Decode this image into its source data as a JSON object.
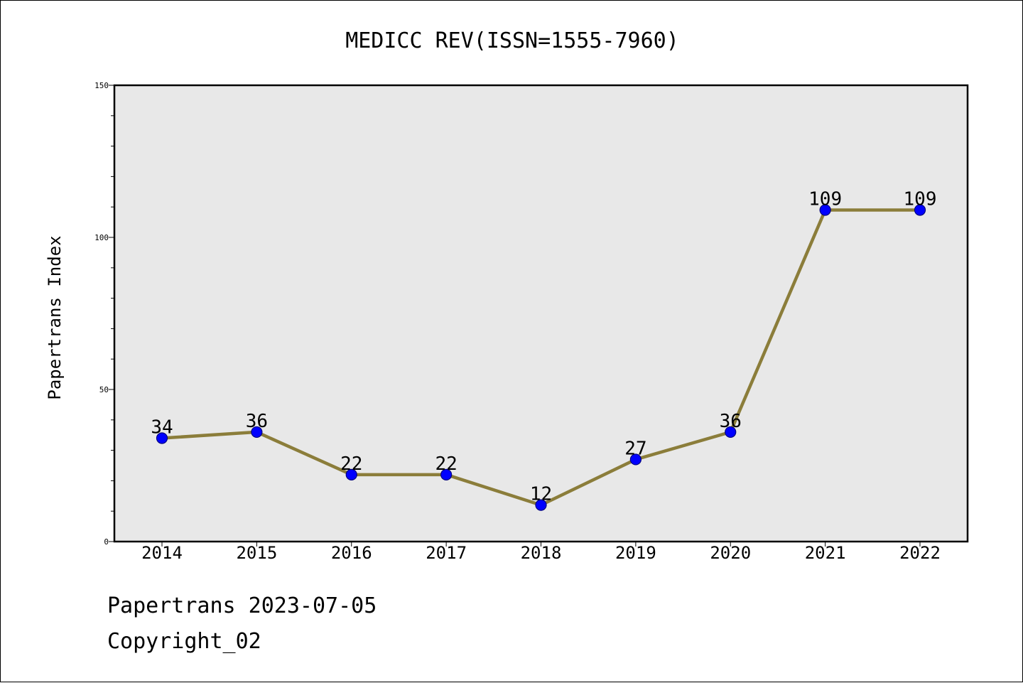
{
  "chart_data": {
    "type": "line",
    "title": "MEDICC REV(ISSN=1555-7960)",
    "xlabel": "",
    "ylabel": "Papertrans Index",
    "categories": [
      "2014",
      "2015",
      "2016",
      "2017",
      "2018",
      "2019",
      "2020",
      "2021",
      "2022"
    ],
    "values": [
      34,
      36,
      22,
      22,
      12,
      27,
      36,
      109,
      109
    ],
    "data_labels": [
      "34",
      "36",
      "22",
      "22",
      "12",
      "27",
      "36",
      "109",
      "109"
    ],
    "ylim": [
      0,
      150
    ],
    "yticks": [
      0,
      50,
      100,
      150
    ],
    "ytick_labels": [
      "0",
      "50",
      "100",
      "150"
    ],
    "minor_ytick_step": 10,
    "grid": false,
    "legend": "none",
    "colors": {
      "line": "#8b7d3a",
      "marker": "#0000ff",
      "marker_edge": "#000080",
      "plot_background": "#e8e8e8",
      "axes": "#000000"
    }
  },
  "footer": {
    "date_line": "Papertrans 2023-07-05",
    "copyright_line": "Copyright_02"
  }
}
